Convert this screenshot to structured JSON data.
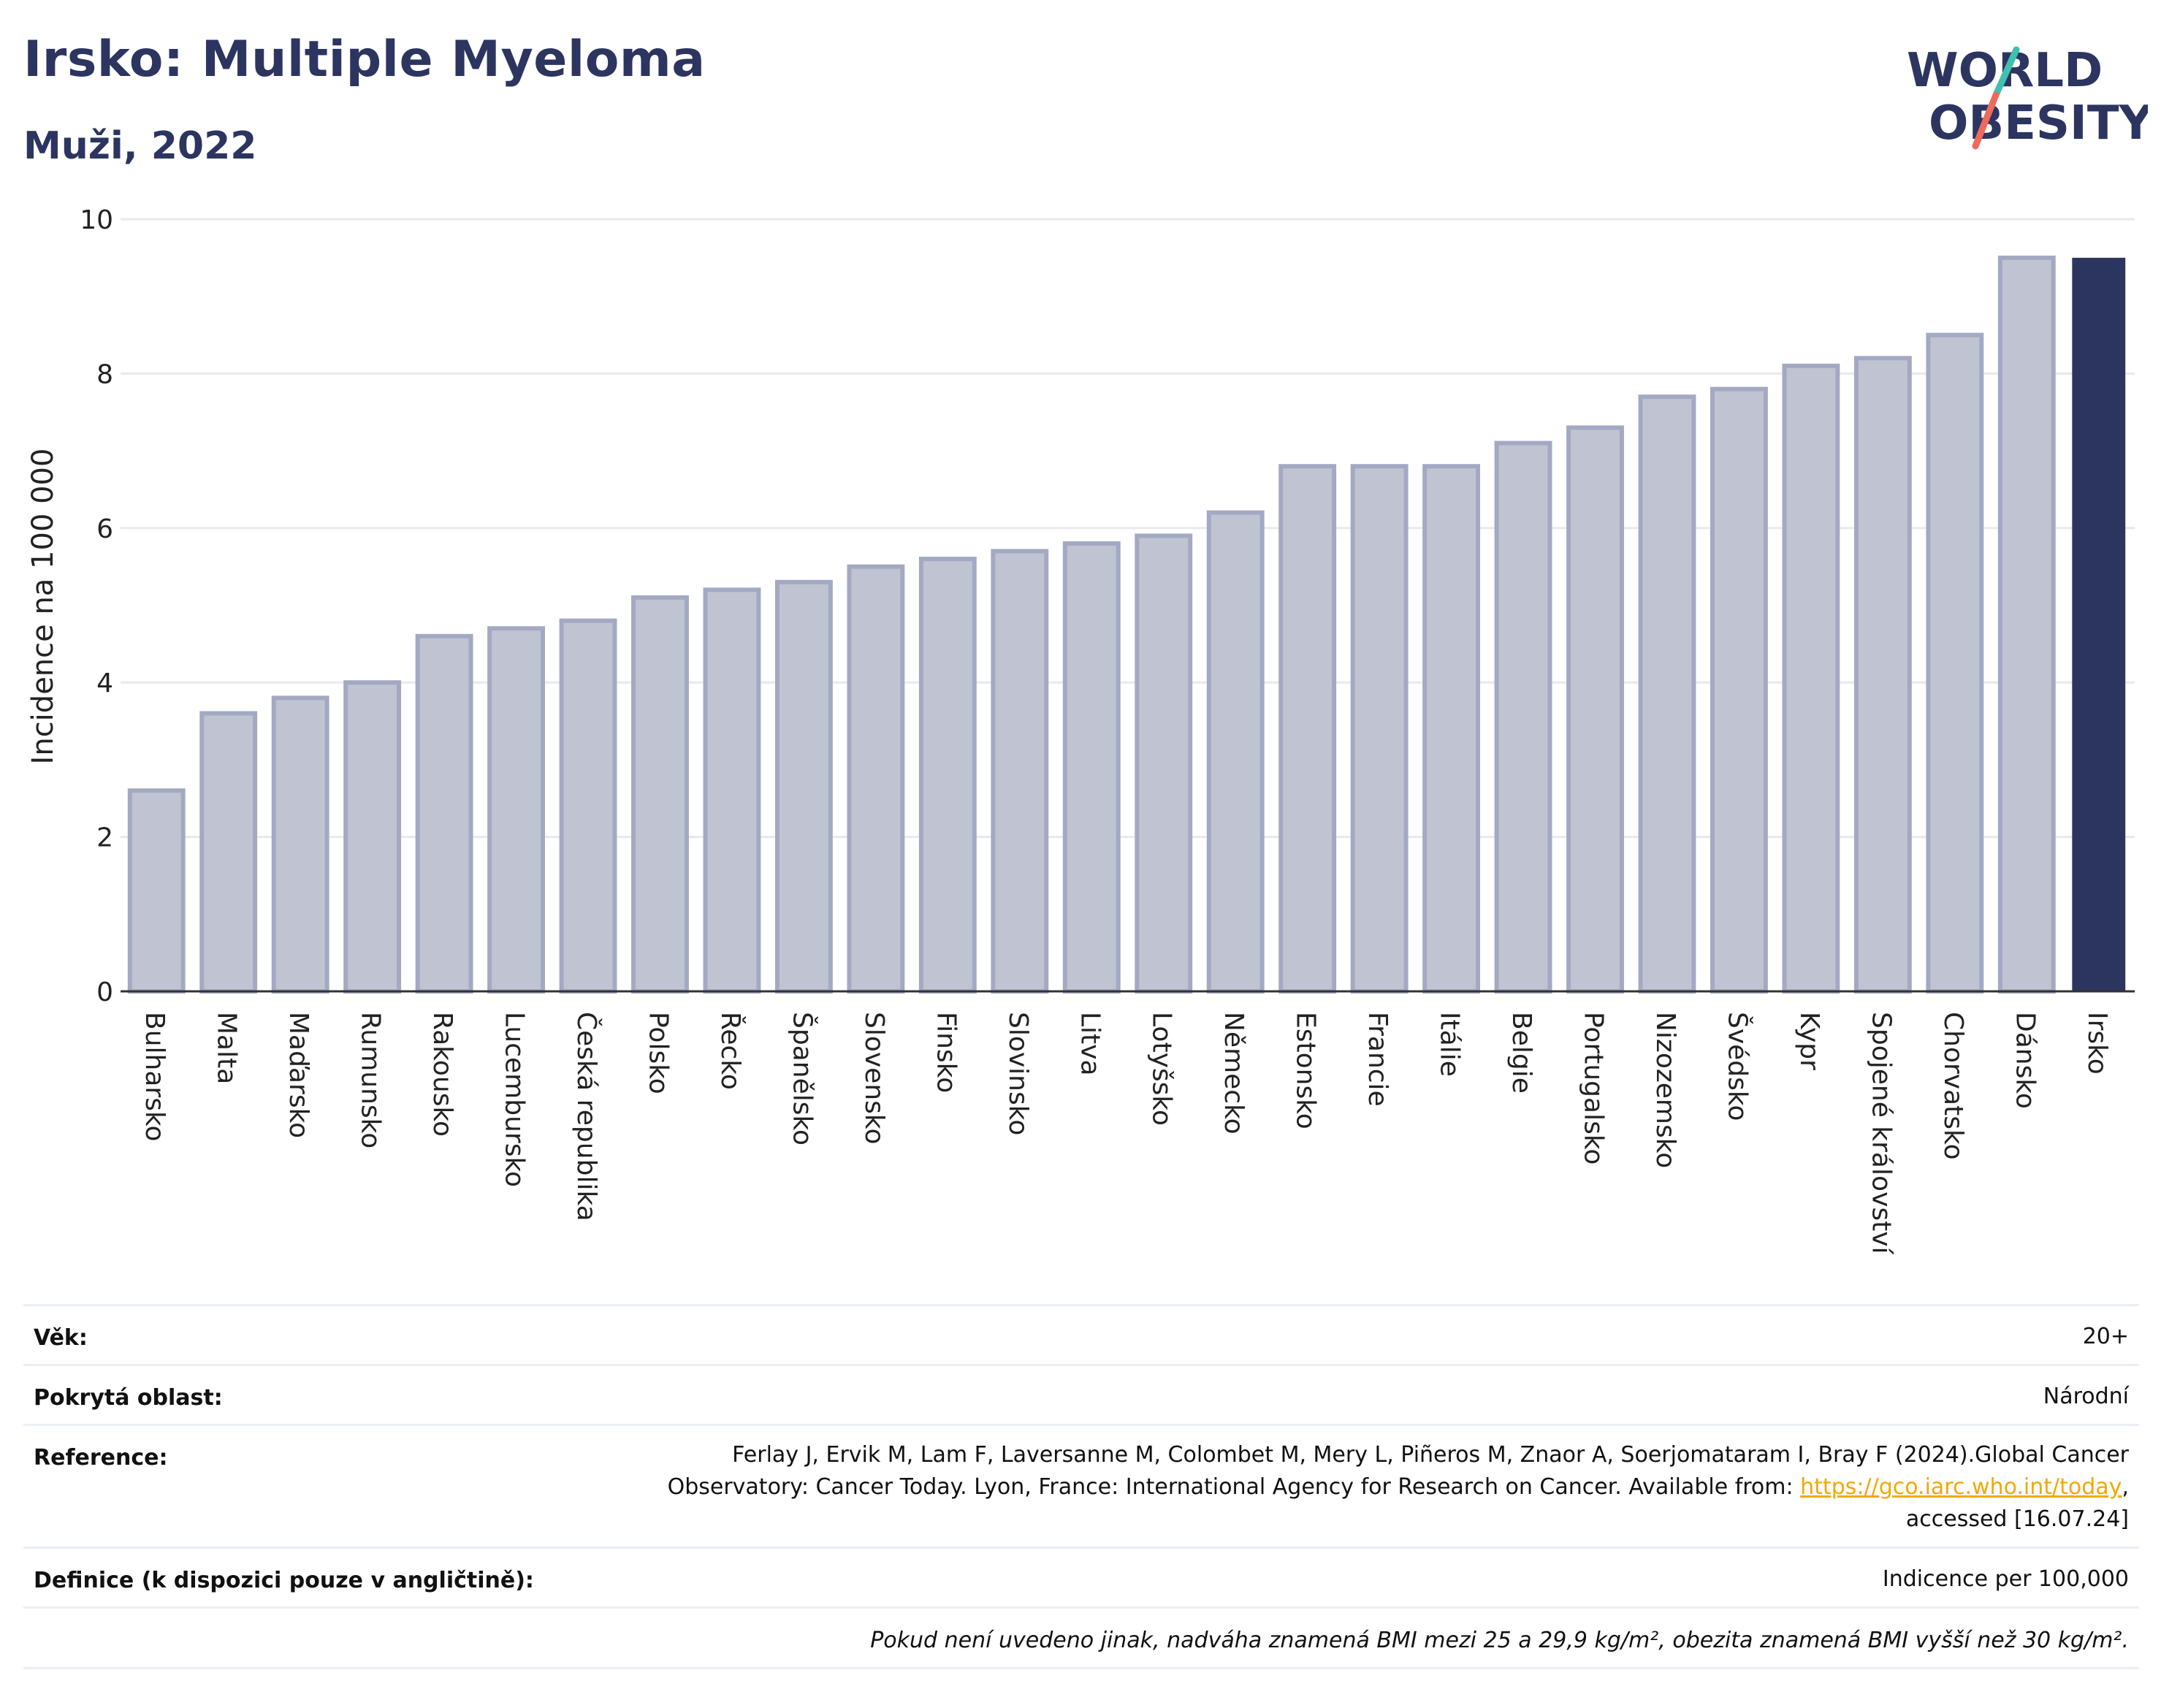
{
  "header": {
    "title": "Irsko: Multiple Myeloma",
    "subtitle": "Muži, 2022"
  },
  "logo": {
    "line1": "WORLD",
    "line2": "OBESITY",
    "icon": "slash-logo"
  },
  "chart_data": {
    "type": "bar",
    "title": "Irsko: Multiple Myeloma",
    "subtitle": "Muži, 2022",
    "ylabel": "Incidence na 100 000",
    "xlabel": "",
    "ylim": [
      0,
      10
    ],
    "yticks": [
      0,
      2,
      4,
      6,
      8,
      10
    ],
    "grid": true,
    "highlight": "Irsko",
    "colors": {
      "bar": "#c0c4d2",
      "bar_border": "#a3a9c2",
      "highlight": "#2c3560",
      "grid": "#e8e8ee",
      "text": "#222222"
    },
    "categories": [
      "Bulharsko",
      "Malta",
      "Maďarsko",
      "Rumunsko",
      "Rakousko",
      "Lucembursko",
      "Česká republika",
      "Polsko",
      "Řecko",
      "Španělsko",
      "Slovensko",
      "Finsko",
      "Slovinsko",
      "Litva",
      "Lotyšsko",
      "Německo",
      "Estonsko",
      "Francie",
      "Itálie",
      "Belgie",
      "Portugalsko",
      "Nizozemsko",
      "Švédsko",
      "Kypr",
      "Spojené království",
      "Chorvatsko",
      "Dánsko",
      "Irsko"
    ],
    "values": [
      2.6,
      3.6,
      3.8,
      4.0,
      4.6,
      4.7,
      4.8,
      5.1,
      5.2,
      5.3,
      5.5,
      5.6,
      5.7,
      5.8,
      5.9,
      6.2,
      6.8,
      6.8,
      6.8,
      7.1,
      7.3,
      7.7,
      7.8,
      8.1,
      8.2,
      8.5,
      9.5,
      9.5
    ]
  },
  "info": {
    "age_label": "Věk:",
    "age_value": "20+",
    "area_label": "Pokrytá oblast:",
    "area_value": "Národní",
    "ref_label": "Reference:",
    "ref_line1": "Ferlay J, Ervik M, Lam F, Laversanne M, Colombet M, Mery L, Piñeros M, Znaor A, Soerjomataram I, Bray F (2024).Global Cancer",
    "ref_line2_pre": "Observatory: Cancer Today. Lyon, France: International Agency for Research on Cancer. Available from: ",
    "ref_link": "https://gco.iarc.who.int/today",
    "ref_line2_post": ",",
    "ref_line3": "accessed [16.07.24]",
    "def_label": "Definice (k dispozici pouze v angličtině):",
    "def_value": "Indicence per 100,000",
    "note": "Pokud není uvedeno jinak, nadváha znamená BMI mezi 25 a 29,9 kg/m², obezita znamená BMI vyšší než 30 kg/m²."
  }
}
